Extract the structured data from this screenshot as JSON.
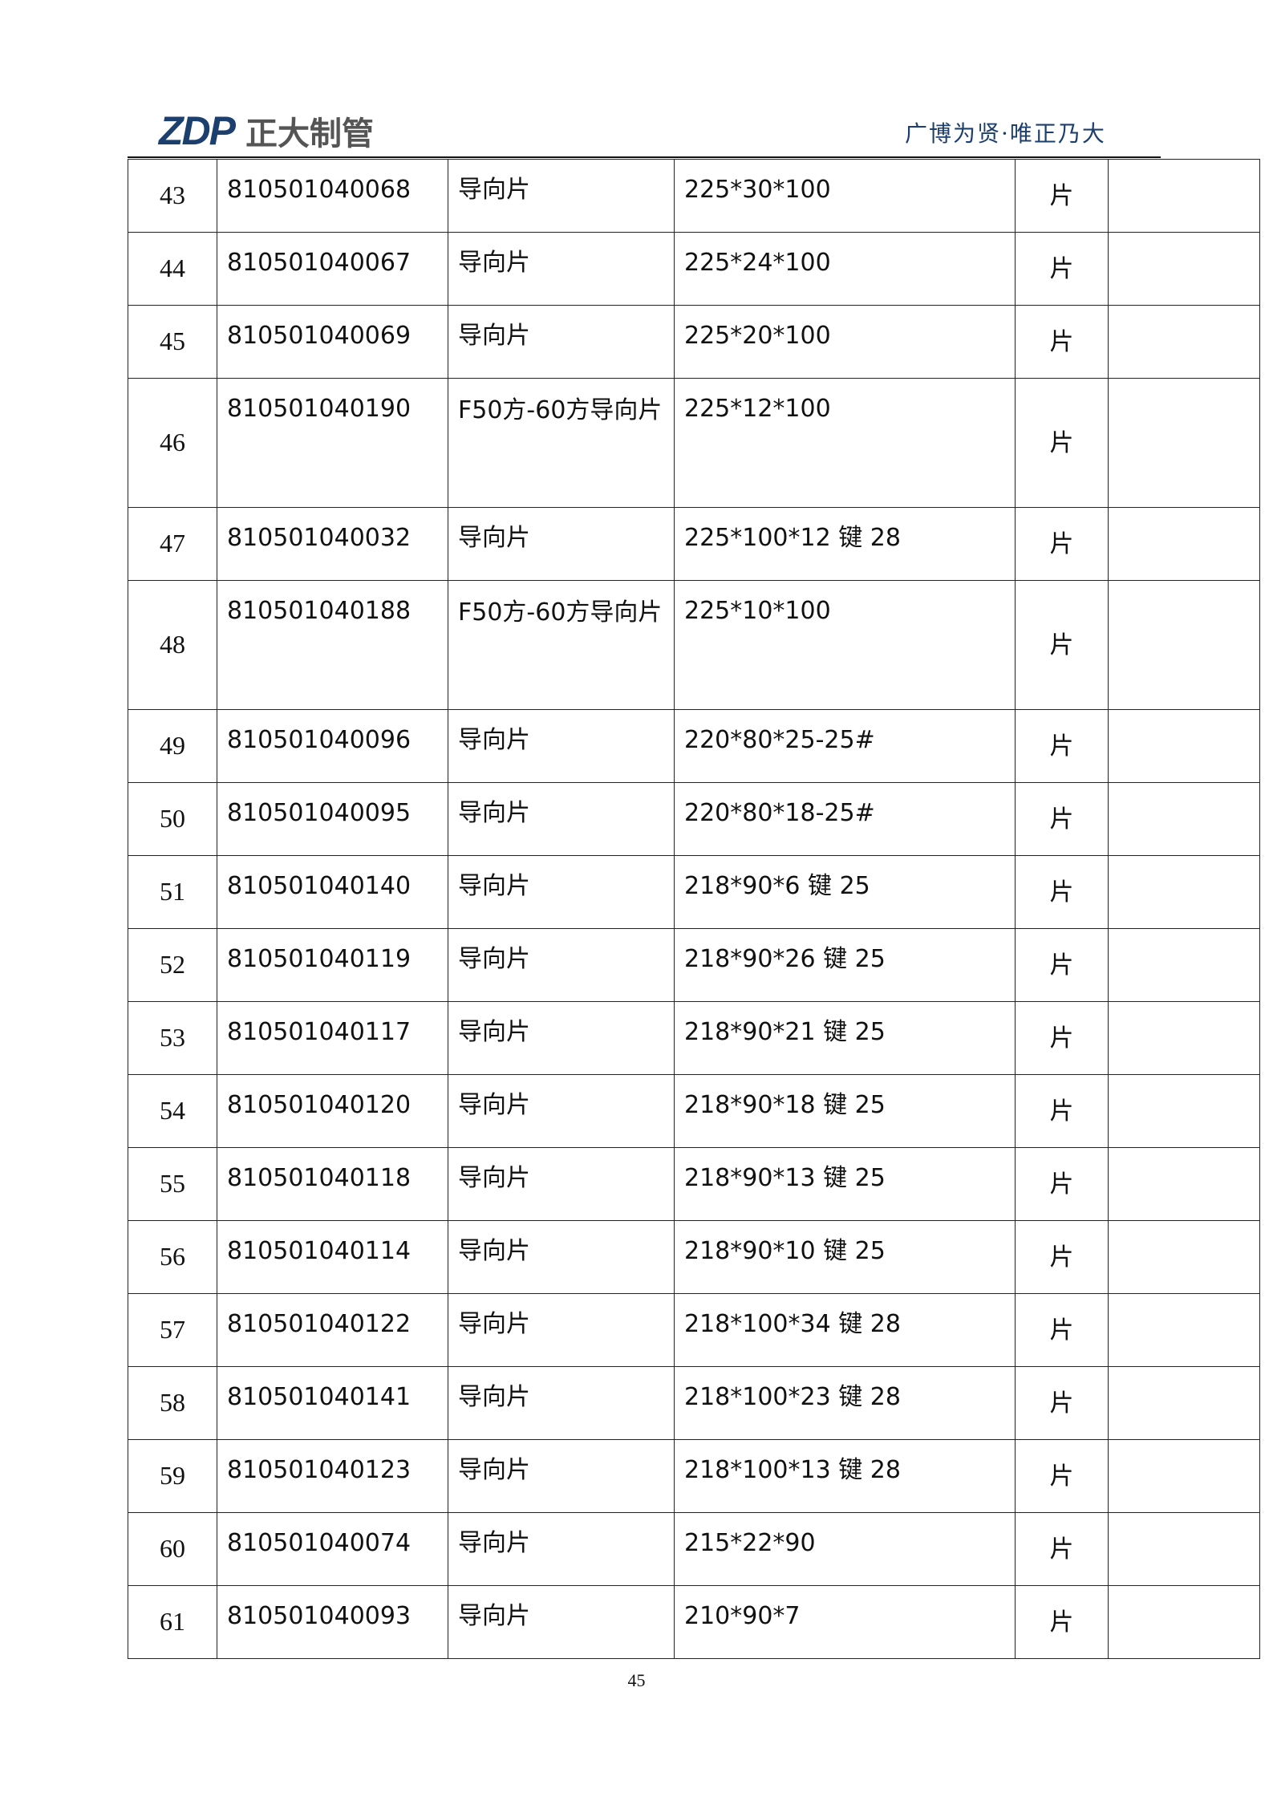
{
  "header": {
    "logo_text": "ZDP",
    "logo_cn": "正大制管",
    "slogan": "广博为贤·唯正乃大"
  },
  "rows": [
    {
      "no": "43",
      "code": "810501040068",
      "name": "导向片",
      "spec": "225*30*100",
      "unit": "片",
      "tall": false
    },
    {
      "no": "44",
      "code": "810501040067",
      "name": "导向片",
      "spec": "225*24*100",
      "unit": "片",
      "tall": false
    },
    {
      "no": "45",
      "code": "810501040069",
      "name": "导向片",
      "spec": "225*20*100",
      "unit": "片",
      "tall": false
    },
    {
      "no": "46",
      "code": "810501040190",
      "name": "F50方-60方导向片",
      "spec": "225*12*100",
      "unit": "片",
      "tall": true
    },
    {
      "no": "47",
      "code": "810501040032",
      "name": "导向片",
      "spec": "225*100*12 键 28",
      "unit": "片",
      "tall": false
    },
    {
      "no": "48",
      "code": "810501040188",
      "name": "F50方-60方导向片",
      "spec": "225*10*100",
      "unit": "片",
      "tall": true
    },
    {
      "no": "49",
      "code": "810501040096",
      "name": "导向片",
      "spec": "220*80*25-25#",
      "unit": "片",
      "tall": false
    },
    {
      "no": "50",
      "code": "810501040095",
      "name": "导向片",
      "spec": "220*80*18-25#",
      "unit": "片",
      "tall": false
    },
    {
      "no": "51",
      "code": "810501040140",
      "name": "导向片",
      "spec": "218*90*6 键 25",
      "unit": "片",
      "tall": false
    },
    {
      "no": "52",
      "code": "810501040119",
      "name": "导向片",
      "spec": "218*90*26 键 25",
      "unit": "片",
      "tall": false
    },
    {
      "no": "53",
      "code": "810501040117",
      "name": "导向片",
      "spec": "218*90*21 键 25",
      "unit": "片",
      "tall": false
    },
    {
      "no": "54",
      "code": "810501040120",
      "name": "导向片",
      "spec": "218*90*18 键 25",
      "unit": "片",
      "tall": false
    },
    {
      "no": "55",
      "code": "810501040118",
      "name": "导向片",
      "spec": "218*90*13 键 25",
      "unit": "片",
      "tall": false
    },
    {
      "no": "56",
      "code": "810501040114",
      "name": "导向片",
      "spec": "218*90*10 键 25",
      "unit": "片",
      "tall": false
    },
    {
      "no": "57",
      "code": "810501040122",
      "name": "导向片",
      "spec": "218*100*34 键 28",
      "unit": "片",
      "tall": false
    },
    {
      "no": "58",
      "code": "810501040141",
      "name": "导向片",
      "spec": "218*100*23 键 28",
      "unit": "片",
      "tall": false
    },
    {
      "no": "59",
      "code": "810501040123",
      "name": "导向片",
      "spec": "218*100*13 键 28",
      "unit": "片",
      "tall": false
    },
    {
      "no": "60",
      "code": "810501040074",
      "name": "导向片",
      "spec": "215*22*90",
      "unit": "片",
      "tall": false
    },
    {
      "no": "61",
      "code": "810501040093",
      "name": "导向片",
      "spec": "210*90*7",
      "unit": "片",
      "tall": false
    }
  ],
  "page_number": "45"
}
